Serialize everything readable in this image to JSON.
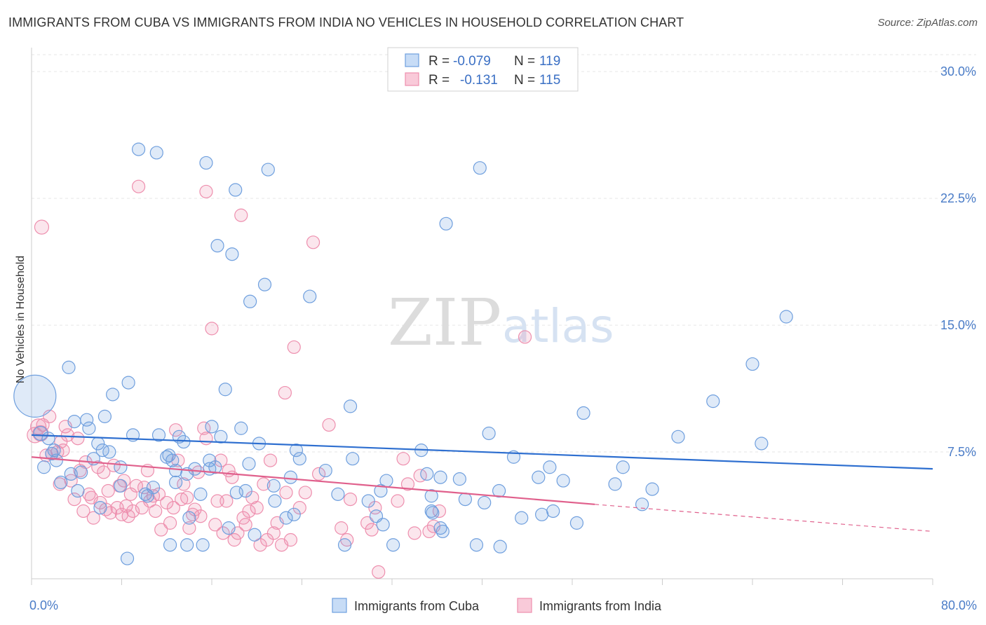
{
  "title": "IMMIGRANTS FROM CUBA VS IMMIGRANTS FROM INDIA NO VEHICLES IN HOUSEHOLD CORRELATION CHART",
  "source": "Source: ZipAtlas.com",
  "colors": {
    "cuba": "#6f9fde",
    "india": "#ee8fae",
    "cuba_line": "#2e6fd0",
    "india_line": "#e0608c",
    "tick": "#4a7cc7"
  },
  "watermark": {
    "zip": "ZIP",
    "atlas": "atlas"
  },
  "legend": {
    "rows": [
      {
        "r_label": "R =",
        "r_value": "-0.079",
        "n_label": "N =",
        "n_value": "119"
      },
      {
        "r_label": "R =",
        "r_value": "-0.131",
        "n_label": "N =",
        "n_value": "115"
      }
    ]
  },
  "chart_data": {
    "type": "scatter",
    "title": "IMMIGRANTS FROM CUBA VS IMMIGRANTS FROM INDIA NO VEHICLES IN HOUSEHOLD CORRELATION CHART",
    "xlabel": "",
    "ylabel": "No Vehicles in Household",
    "xlim": [
      0,
      80
    ],
    "ylim": [
      0,
      31
    ],
    "x_tick_labels": [
      "0.0%",
      "80.0%"
    ],
    "y_ticks": [
      7.5,
      15.0,
      22.5,
      30.0
    ],
    "y_tick_labels": [
      "7.5%",
      "15.0%",
      "22.5%",
      "30.0%"
    ],
    "grid": true,
    "legend_position": "top-center",
    "series": [
      {
        "name": "Immigrants from Cuba",
        "trend": {
          "x": [
            0,
            80
          ],
          "y": [
            8.5,
            6.5
          ]
        },
        "points": [
          [
            0.3,
            10.8,
            30
          ],
          [
            0.8,
            8.6,
            10
          ],
          [
            1.1,
            6.6,
            9
          ],
          [
            1.5,
            8.3,
            9
          ],
          [
            1.8,
            7.4,
            9
          ],
          [
            2.0,
            7.6,
            9
          ],
          [
            2.2,
            7.0,
            9
          ],
          [
            2.6,
            5.7,
            9
          ],
          [
            3.3,
            12.5,
            9
          ],
          [
            3.5,
            6.2,
            9
          ],
          [
            3.8,
            9.3,
            9
          ],
          [
            4.1,
            5.2,
            9
          ],
          [
            4.4,
            6.3,
            9
          ],
          [
            4.9,
            9.4,
            9
          ],
          [
            5.1,
            8.9,
            9
          ],
          [
            5.5,
            7.1,
            9
          ],
          [
            5.9,
            8.0,
            9
          ],
          [
            6.1,
            4.2,
            9
          ],
          [
            6.3,
            7.6,
            9
          ],
          [
            6.5,
            9.6,
            9
          ],
          [
            6.9,
            7.5,
            9
          ],
          [
            7.2,
            10.9,
            9
          ],
          [
            7.9,
            6.6,
            9
          ],
          [
            7.9,
            5.5,
            9
          ],
          [
            8.5,
            1.2,
            9
          ],
          [
            8.6,
            11.6,
            9
          ],
          [
            9.0,
            8.5,
            9
          ],
          [
            9.5,
            25.4,
            9
          ],
          [
            10.1,
            5.0,
            9
          ],
          [
            10.3,
            4.9,
            9
          ],
          [
            10.8,
            5.4,
            9
          ],
          [
            11.3,
            8.5,
            9
          ],
          [
            11.1,
            25.2,
            9
          ],
          [
            12.0,
            7.2,
            9
          ],
          [
            12.2,
            7.3,
            9
          ],
          [
            12.3,
            2.0,
            9
          ],
          [
            12.5,
            7.0,
            9
          ],
          [
            12.8,
            5.7,
            9
          ],
          [
            12.8,
            6.4,
            9
          ],
          [
            13.1,
            8.4,
            9
          ],
          [
            13.5,
            8.1,
            9
          ],
          [
            13.8,
            2.0,
            9
          ],
          [
            13.8,
            6.2,
            9
          ],
          [
            14.0,
            3.6,
            9
          ],
          [
            14.5,
            6.5,
            9
          ],
          [
            15.0,
            5.0,
            9
          ],
          [
            15.2,
            2.0,
            9
          ],
          [
            15.5,
            24.6,
            9
          ],
          [
            15.8,
            6.5,
            9
          ],
          [
            15.8,
            7.0,
            9
          ],
          [
            16.0,
            9.0,
            9
          ],
          [
            16.3,
            6.6,
            9
          ],
          [
            16.5,
            19.7,
            9
          ],
          [
            16.8,
            8.4,
            9
          ],
          [
            17.2,
            11.2,
            9
          ],
          [
            17.5,
            3.0,
            9
          ],
          [
            17.8,
            19.2,
            9
          ],
          [
            18.1,
            23.0,
            9
          ],
          [
            18.2,
            5.1,
            9
          ],
          [
            18.6,
            8.9,
            9
          ],
          [
            19.0,
            5.2,
            9
          ],
          [
            19.3,
            6.8,
            9
          ],
          [
            19.4,
            16.4,
            9
          ],
          [
            19.8,
            2.6,
            9
          ],
          [
            20.2,
            8.0,
            9
          ],
          [
            20.7,
            17.4,
            9
          ],
          [
            21.0,
            24.2,
            9
          ],
          [
            21.5,
            5.5,
            9
          ],
          [
            21.6,
            4.6,
            9
          ],
          [
            22.6,
            3.6,
            9
          ],
          [
            23.0,
            6.0,
            9
          ],
          [
            23.3,
            3.8,
            9
          ],
          [
            23.5,
            7.6,
            9
          ],
          [
            23.8,
            7.1,
            9
          ],
          [
            24.7,
            16.7,
            9
          ],
          [
            26.1,
            6.4,
            9
          ],
          [
            27.2,
            5.0,
            9
          ],
          [
            27.8,
            2.0,
            9
          ],
          [
            28.3,
            10.2,
            9
          ],
          [
            28.5,
            7.1,
            9
          ],
          [
            29.9,
            4.6,
            9
          ],
          [
            30.6,
            3.7,
            9
          ],
          [
            31.0,
            5.2,
            9
          ],
          [
            31.2,
            3.2,
            9
          ],
          [
            31.5,
            5.8,
            9
          ],
          [
            32.1,
            2.0,
            9
          ],
          [
            34.6,
            7.6,
            9
          ],
          [
            35.1,
            6.2,
            9
          ],
          [
            35.5,
            4.9,
            9
          ],
          [
            35.6,
            3.9,
            9
          ],
          [
            35.5,
            4.0,
            9
          ],
          [
            36.3,
            6.0,
            9
          ],
          [
            36.3,
            3.0,
            9
          ],
          [
            36.5,
            2.8,
            9
          ],
          [
            36.8,
            21.0,
            9
          ],
          [
            38.0,
            5.9,
            9
          ],
          [
            38.5,
            4.7,
            9
          ],
          [
            39.5,
            2.0,
            9
          ],
          [
            39.8,
            24.3,
            9
          ],
          [
            40.2,
            4.5,
            9
          ],
          [
            40.6,
            8.6,
            9
          ],
          [
            41.5,
            5.2,
            9
          ],
          [
            41.6,
            1.9,
            9
          ],
          [
            42.8,
            7.2,
            9
          ],
          [
            43.5,
            3.6,
            9
          ],
          [
            45.0,
            6.0,
            9
          ],
          [
            45.3,
            3.8,
            9
          ],
          [
            46.0,
            6.6,
            9
          ],
          [
            46.3,
            4.0,
            9
          ],
          [
            47.2,
            5.8,
            9
          ],
          [
            48.4,
            3.3,
            9
          ],
          [
            49.0,
            9.8,
            9
          ],
          [
            51.8,
            5.6,
            9
          ],
          [
            52.5,
            6.6,
            9
          ],
          [
            54.2,
            4.4,
            9
          ],
          [
            55.1,
            5.3,
            9
          ],
          [
            57.4,
            8.4,
            9
          ],
          [
            60.5,
            10.5,
            9
          ],
          [
            64.0,
            12.7,
            9
          ],
          [
            64.8,
            8.0,
            9
          ],
          [
            67.0,
            15.5,
            9
          ]
        ]
      },
      {
        "name": "Immigrants from India",
        "trend": {
          "x": [
            0,
            50
          ],
          "y": [
            7.2,
            4.4
          ]
        },
        "trend_ext": {
          "x": [
            50,
            80
          ],
          "y": [
            4.4,
            2.8
          ]
        },
        "points": [
          [
            0.3,
            8.5,
            11
          ],
          [
            0.6,
            9.0,
            11
          ],
          [
            0.8,
            8.6,
            11
          ],
          [
            0.9,
            20.8,
            10
          ],
          [
            1.0,
            9.1,
            9
          ],
          [
            1.3,
            7.3,
            9
          ],
          [
            1.6,
            9.6,
            9
          ],
          [
            1.8,
            7.4,
            9
          ],
          [
            2.3,
            7.5,
            9
          ],
          [
            2.5,
            5.6,
            9
          ],
          [
            2.6,
            8.1,
            9
          ],
          [
            2.8,
            7.6,
            9
          ],
          [
            3.0,
            9.0,
            9
          ],
          [
            3.2,
            8.5,
            9
          ],
          [
            3.5,
            5.8,
            9
          ],
          [
            3.8,
            4.7,
            9
          ],
          [
            4.1,
            8.3,
            9
          ],
          [
            4.3,
            6.4,
            9
          ],
          [
            4.6,
            4.0,
            9
          ],
          [
            4.8,
            6.9,
            9
          ],
          [
            5.1,
            5.0,
            9
          ],
          [
            5.3,
            4.8,
            9
          ],
          [
            5.5,
            3.6,
            9
          ],
          [
            5.9,
            6.6,
            9
          ],
          [
            6.1,
            4.5,
            9
          ],
          [
            6.4,
            6.3,
            9
          ],
          [
            6.6,
            4.1,
            9
          ],
          [
            6.8,
            5.2,
            9
          ],
          [
            7.0,
            3.9,
            9
          ],
          [
            7.3,
            6.7,
            9
          ],
          [
            7.6,
            4.2,
            9
          ],
          [
            7.8,
            5.5,
            9
          ],
          [
            8.0,
            3.8,
            9
          ],
          [
            8.2,
            5.8,
            9
          ],
          [
            8.4,
            4.3,
            9
          ],
          [
            8.6,
            3.7,
            9
          ],
          [
            8.8,
            5.0,
            9
          ],
          [
            9.0,
            4.0,
            9
          ],
          [
            9.3,
            5.5,
            9
          ],
          [
            9.5,
            23.2,
            9
          ],
          [
            9.8,
            4.2,
            9
          ],
          [
            10.0,
            5.4,
            9
          ],
          [
            10.3,
            6.4,
            9
          ],
          [
            10.5,
            4.6,
            9
          ],
          [
            10.8,
            4.9,
            9
          ],
          [
            11.0,
            4.0,
            9
          ],
          [
            11.3,
            5.0,
            9
          ],
          [
            11.5,
            2.9,
            9
          ],
          [
            12.0,
            4.5,
            9
          ],
          [
            12.3,
            3.3,
            9
          ],
          [
            12.6,
            4.2,
            9
          ],
          [
            12.8,
            8.8,
            9
          ],
          [
            13.0,
            7.0,
            9
          ],
          [
            13.3,
            4.7,
            9
          ],
          [
            13.5,
            5.6,
            9
          ],
          [
            13.8,
            4.8,
            9
          ],
          [
            14.0,
            3.0,
            9
          ],
          [
            14.3,
            3.8,
            9
          ],
          [
            14.5,
            4.1,
            9
          ],
          [
            14.8,
            6.3,
            9
          ],
          [
            15.0,
            3.7,
            9
          ],
          [
            15.3,
            8.9,
            9
          ],
          [
            15.5,
            8.3,
            9
          ],
          [
            15.5,
            22.9,
            9
          ],
          [
            16.0,
            14.8,
            9
          ],
          [
            16.3,
            3.2,
            9
          ],
          [
            16.5,
            4.6,
            9
          ],
          [
            16.8,
            7.0,
            9
          ],
          [
            17.0,
            2.7,
            9
          ],
          [
            17.3,
            4.6,
            9
          ],
          [
            17.5,
            6.4,
            9
          ],
          [
            17.8,
            6.0,
            9
          ],
          [
            18.0,
            2.3,
            9
          ],
          [
            18.3,
            2.7,
            9
          ],
          [
            18.6,
            21.5,
            9
          ],
          [
            18.8,
            3.6,
            9
          ],
          [
            19.0,
            3.2,
            9
          ],
          [
            19.3,
            4.0,
            9
          ],
          [
            19.6,
            4.8,
            9
          ],
          [
            20.0,
            4.2,
            9
          ],
          [
            20.3,
            2.0,
            9
          ],
          [
            20.6,
            5.6,
            9
          ],
          [
            20.9,
            2.3,
            9
          ],
          [
            21.2,
            7.0,
            9
          ],
          [
            21.5,
            2.7,
            9
          ],
          [
            21.8,
            3.3,
            9
          ],
          [
            22.2,
            2.0,
            9
          ],
          [
            22.5,
            11.0,
            9
          ],
          [
            22.6,
            5.1,
            9
          ],
          [
            23.0,
            2.3,
            9
          ],
          [
            23.3,
            13.7,
            9
          ],
          [
            23.8,
            4.2,
            9
          ],
          [
            24.3,
            5.1,
            9
          ],
          [
            25.0,
            19.9,
            9
          ],
          [
            25.5,
            6.2,
            9
          ],
          [
            26.4,
            9.1,
            9
          ],
          [
            27.5,
            3.0,
            9
          ],
          [
            28.0,
            2.3,
            9
          ],
          [
            28.3,
            4.7,
            9
          ],
          [
            29.8,
            3.3,
            9
          ],
          [
            30.2,
            2.9,
            9
          ],
          [
            30.5,
            4.2,
            9
          ],
          [
            30.8,
            0.4,
            9
          ],
          [
            32.5,
            4.6,
            9
          ],
          [
            33.0,
            7.1,
            9
          ],
          [
            33.4,
            5.6,
            9
          ],
          [
            34.0,
            2.7,
            9
          ],
          [
            34.5,
            6.1,
            9
          ],
          [
            35.3,
            2.8,
            9
          ],
          [
            35.7,
            3.1,
            9
          ],
          [
            36.2,
            4.0,
            9
          ],
          [
            43.8,
            14.3,
            9
          ]
        ]
      }
    ]
  },
  "bottom_legend": {
    "cuba": "Immigrants from Cuba",
    "india": "Immigrants from India"
  }
}
